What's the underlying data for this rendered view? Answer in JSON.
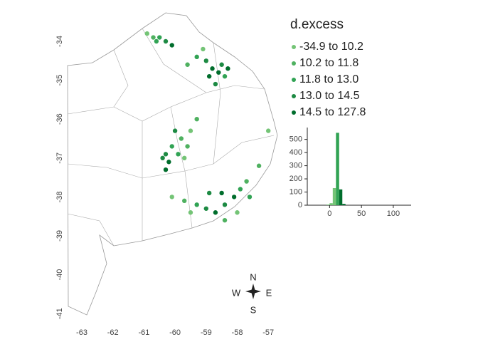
{
  "map": {
    "lon_ticks": [
      -63,
      -62,
      -61,
      -60,
      -59,
      -58,
      -57
    ],
    "lat_ticks": [
      -34,
      -35,
      -36,
      -37,
      -38,
      -39,
      -40,
      -41
    ],
    "legend": {
      "title": "d.excess",
      "classes": [
        {
          "label": "-34.9 to 10.2",
          "color": "#74c476"
        },
        {
          "label": "10.2 to 11.8",
          "color": "#4fb160"
        },
        {
          "label": "11.8 to 13.0",
          "color": "#31a354"
        },
        {
          "label": "13.0 to 14.5",
          "color": "#1d8a43"
        },
        {
          "label": "14.5 to 127.8",
          "color": "#006d2c"
        }
      ]
    },
    "points": [
      {
        "lon": -60.9,
        "lat": -33.8,
        "class": 0
      },
      {
        "lon": -60.7,
        "lat": -33.9,
        "class": 1
      },
      {
        "lon": -60.5,
        "lat": -33.9,
        "class": 2
      },
      {
        "lon": -60.3,
        "lat": -34.0,
        "class": 3
      },
      {
        "lon": -60.1,
        "lat": -34.1,
        "class": 4
      },
      {
        "lon": -60.6,
        "lat": -34.0,
        "class": 2
      },
      {
        "lon": -59.6,
        "lat": -34.6,
        "class": 1
      },
      {
        "lon": -59.3,
        "lat": -34.4,
        "class": 2
      },
      {
        "lon": -59.0,
        "lat": -34.5,
        "class": 3
      },
      {
        "lon": -58.8,
        "lat": -34.7,
        "class": 4
      },
      {
        "lon": -58.6,
        "lat": -34.8,
        "class": 4
      },
      {
        "lon": -58.5,
        "lat": -34.6,
        "class": 3
      },
      {
        "lon": -58.9,
        "lat": -34.9,
        "class": 4
      },
      {
        "lon": -58.7,
        "lat": -35.1,
        "class": 3
      },
      {
        "lon": -58.4,
        "lat": -34.9,
        "class": 2
      },
      {
        "lon": -59.1,
        "lat": -34.2,
        "class": 0
      },
      {
        "lon": -58.3,
        "lat": -34.7,
        "class": 4
      },
      {
        "lon": -60.3,
        "lat": -36.9,
        "class": 3
      },
      {
        "lon": -60.2,
        "lat": -37.1,
        "class": 4
      },
      {
        "lon": -60.4,
        "lat": -37.0,
        "class": 3
      },
      {
        "lon": -60.1,
        "lat": -36.7,
        "class": 2
      },
      {
        "lon": -59.8,
        "lat": -36.5,
        "class": 1
      },
      {
        "lon": -59.5,
        "lat": -36.3,
        "class": 0
      },
      {
        "lon": -59.3,
        "lat": -36.0,
        "class": 1
      },
      {
        "lon": -59.9,
        "lat": -36.9,
        "class": 2
      },
      {
        "lon": -60.3,
        "lat": -37.3,
        "class": 4
      },
      {
        "lon": -59.6,
        "lat": -36.7,
        "class": 1
      },
      {
        "lon": -60.0,
        "lat": -36.3,
        "class": 3
      },
      {
        "lon": -59.7,
        "lat": -37.0,
        "class": 0
      },
      {
        "lon": -60.1,
        "lat": -38.0,
        "class": 0
      },
      {
        "lon": -59.7,
        "lat": -38.1,
        "class": 1
      },
      {
        "lon": -59.3,
        "lat": -38.2,
        "class": 2
      },
      {
        "lon": -59.0,
        "lat": -38.3,
        "class": 3
      },
      {
        "lon": -58.7,
        "lat": -38.4,
        "class": 4
      },
      {
        "lon": -58.4,
        "lat": -38.2,
        "class": 3
      },
      {
        "lon": -58.1,
        "lat": -38.0,
        "class": 4
      },
      {
        "lon": -57.9,
        "lat": -37.8,
        "class": 2
      },
      {
        "lon": -57.7,
        "lat": -37.6,
        "class": 1
      },
      {
        "lon": -58.0,
        "lat": -38.4,
        "class": 0
      },
      {
        "lon": -58.5,
        "lat": -37.9,
        "class": 4
      },
      {
        "lon": -58.9,
        "lat": -37.9,
        "class": 3
      },
      {
        "lon": -57.6,
        "lat": -38.0,
        "class": 2
      },
      {
        "lon": -57.3,
        "lat": -37.2,
        "class": 1
      },
      {
        "lon": -57.0,
        "lat": -36.3,
        "class": 0
      },
      {
        "lon": -58.4,
        "lat": -38.6,
        "class": 1
      },
      {
        "lon": -59.5,
        "lat": -38.4,
        "class": 0
      }
    ],
    "histogram": {
      "type": "bar",
      "bins": [
        -5,
        0,
        5,
        10,
        15,
        20,
        25
      ],
      "values": [
        5,
        15,
        130,
        550,
        120,
        10
      ],
      "colors": [
        "#74c476",
        "#74c476",
        "#74c476",
        "#31a354",
        "#006d2c",
        "#006d2c"
      ],
      "xlim": [
        -35,
        128
      ],
      "xticks": [
        0,
        50,
        100
      ],
      "ylim": [
        0,
        590
      ],
      "yticks": [
        0,
        100,
        200,
        300,
        400,
        500
      ]
    },
    "compass": {
      "north": "N",
      "south": "S",
      "east": "E",
      "west": "W"
    }
  }
}
